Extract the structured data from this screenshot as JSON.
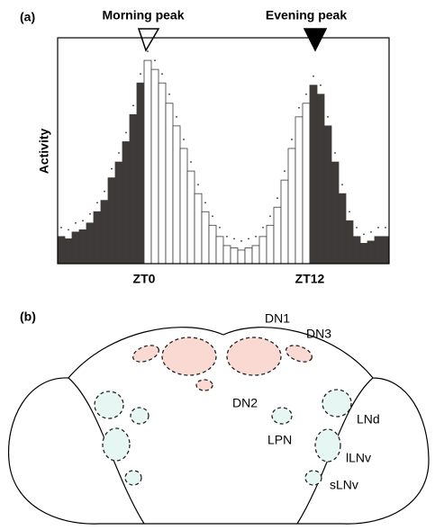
{
  "chart_data": {
    "type": "bar",
    "panel_label": "(a)",
    "y_label": "Activity",
    "annotations": [
      "Morning peak",
      "Evening peak"
    ],
    "categories": [
      null,
      null,
      null,
      null,
      null,
      null,
      null,
      null,
      null,
      null,
      null,
      null,
      "ZT0",
      null,
      null,
      null,
      null,
      null,
      null,
      null,
      null,
      null,
      null,
      null,
      null,
      null,
      null,
      null,
      null,
      null,
      null,
      null,
      null,
      null,
      null,
      "ZT12",
      null,
      null,
      null,
      null,
      null,
      null,
      null,
      null,
      null,
      null
    ],
    "values": [
      12,
      11,
      14,
      15,
      18,
      23,
      28,
      38,
      45,
      54,
      66,
      80,
      90,
      86,
      80,
      71,
      61,
      51,
      41,
      31,
      23,
      17,
      12,
      8,
      7,
      6,
      7,
      8,
      12,
      17,
      25,
      37,
      51,
      65,
      71,
      79,
      75,
      61,
      45,
      31,
      19,
      12,
      9,
      10,
      12,
      12
    ],
    "errors": [
      4,
      4,
      4,
      4,
      4,
      4,
      4,
      4,
      4,
      4,
      4,
      4,
      4,
      4,
      4,
      4,
      4,
      4,
      4,
      4,
      4,
      4,
      4,
      4,
      4,
      4,
      4,
      4,
      4,
      4,
      4,
      4,
      4,
      4,
      4,
      4,
      4,
      4,
      4,
      4,
      4,
      4,
      4,
      4,
      4,
      4
    ],
    "colors": [
      "#3d3a38",
      "#3d3a38",
      "#3d3a38",
      "#3d3a38",
      "#3d3a38",
      "#3d3a38",
      "#3d3a38",
      "#3d3a38",
      "#3d3a38",
      "#3d3a38",
      "#3d3a38",
      "#3d3a38",
      "#ffffff",
      "#ffffff",
      "#ffffff",
      "#ffffff",
      "#ffffff",
      "#ffffff",
      "#ffffff",
      "#ffffff",
      "#ffffff",
      "#ffffff",
      "#ffffff",
      "#ffffff",
      "#ffffff",
      "#ffffff",
      "#ffffff",
      "#ffffff",
      "#ffffff",
      "#ffffff",
      "#ffffff",
      "#ffffff",
      "#ffffff",
      "#ffffff",
      "#ffffff",
      "#3d3a38",
      "#3d3a38",
      "#3d3a38",
      "#3d3a38",
      "#3d3a38",
      "#3d3a38",
      "#3d3a38",
      "#3d3a38",
      "#3d3a38",
      "#3d3a38",
      "#3d3a38"
    ],
    "ylim": [
      0,
      100
    ]
  },
  "diagram": {
    "panel_label": "(b)",
    "labels": [
      "DN1",
      "DN3",
      "DN2",
      "LNd",
      "LPN",
      "lLNv",
      "sLNv"
    ]
  }
}
